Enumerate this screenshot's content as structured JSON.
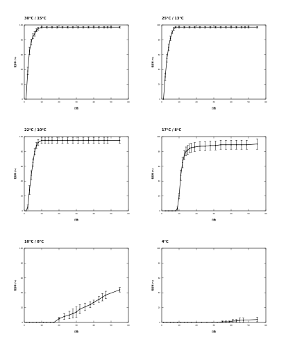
{
  "chart_data": [
    {
      "type": "line",
      "title": "30°C / 15°C",
      "xlabel": "日数",
      "ylabel": "発芽率 (%)",
      "xlim": [
        0,
        60
      ],
      "ylim": [
        0,
        100
      ],
      "xticks": [
        "0",
        "10",
        "20",
        "30",
        "40",
        "50",
        "60"
      ],
      "yticks": [
        "0",
        "20",
        "40",
        "60",
        "80",
        "100"
      ],
      "x": [
        1,
        2,
        3,
        4,
        5,
        6,
        7,
        8,
        10,
        13,
        16,
        19,
        22,
        25,
        28,
        31,
        34,
        37,
        40,
        43,
        46,
        48,
        50,
        55
      ],
      "y": [
        0,
        38,
        65,
        77,
        85,
        88,
        93,
        95,
        97,
        97,
        97,
        97,
        97,
        97,
        97,
        97,
        97,
        97,
        97,
        97,
        97,
        97,
        97,
        97
      ],
      "err": [
        0,
        5,
        5,
        4,
        3,
        3,
        2,
        2,
        1,
        1,
        1,
        1,
        1,
        1,
        1,
        1,
        1,
        1,
        1,
        1,
        1,
        1,
        1,
        1
      ]
    },
    {
      "type": "line",
      "title": "25°C / 13°C",
      "xlabel": "日数",
      "ylabel": "発芽率 (%)",
      "xlim": [
        0,
        60
      ],
      "ylim": [
        0,
        100
      ],
      "xticks": [
        "0",
        "10",
        "20",
        "30",
        "40",
        "50",
        "60"
      ],
      "yticks": [
        "0",
        "20",
        "40",
        "60",
        "80",
        "100"
      ],
      "x": [
        1,
        2,
        3,
        4,
        5,
        6,
        7,
        8,
        10,
        13,
        16,
        19,
        22,
        25,
        28,
        31,
        34,
        37,
        40,
        43,
        46,
        48,
        50,
        55
      ],
      "y": [
        0,
        30,
        55,
        70,
        82,
        90,
        95,
        97,
        97,
        97,
        97,
        97,
        97,
        97,
        97,
        97,
        97,
        97,
        97,
        97,
        97,
        97,
        97,
        97
      ],
      "err": [
        0,
        5,
        5,
        4,
        3,
        2,
        2,
        1,
        1,
        1,
        1,
        1,
        1,
        1,
        1,
        1,
        1,
        1,
        1,
        1,
        1,
        1,
        1,
        1
      ]
    },
    {
      "type": "line",
      "title": "22°C / 10°C",
      "xlabel": "日数",
      "ylabel": "発芽率 (%)",
      "xlim": [
        0,
        60
      ],
      "ylim": [
        0,
        100
      ],
      "xticks": [
        "0",
        "10",
        "20",
        "30",
        "40",
        "50",
        "60"
      ],
      "yticks": [
        "0",
        "20",
        "40",
        "60",
        "80",
        "100"
      ],
      "x": [
        1,
        2,
        3,
        4,
        5,
        6,
        7,
        8,
        10,
        12,
        14,
        16,
        19,
        22,
        25,
        28,
        31,
        34,
        37,
        40,
        43,
        46,
        48,
        55
      ],
      "y": [
        0,
        5,
        28,
        48,
        65,
        80,
        88,
        92,
        95,
        95,
        95,
        95,
        95,
        95,
        95,
        95,
        95,
        95,
        95,
        95,
        95,
        95,
        95,
        95
      ],
      "err": [
        0,
        3,
        6,
        6,
        5,
        4,
        4,
        4,
        4,
        4,
        4,
        4,
        4,
        4,
        4,
        4,
        4,
        4,
        4,
        4,
        4,
        4,
        4,
        4
      ]
    },
    {
      "type": "line",
      "title": "17°C / 8°C",
      "xlabel": "日数",
      "ylabel": "発芽率 (%)",
      "xlim": [
        0,
        60
      ],
      "ylim": [
        0,
        100
      ],
      "xticks": [
        "0",
        "10",
        "20",
        "30",
        "40",
        "50",
        "60"
      ],
      "yticks": [
        "0",
        "20",
        "40",
        "60",
        "80",
        "100"
      ],
      "x": [
        2,
        4,
        6,
        8,
        9,
        10,
        11,
        12,
        13,
        14,
        15,
        16,
        17,
        19,
        22,
        25,
        28,
        31,
        34,
        37,
        40,
        43,
        46,
        49,
        55
      ],
      "y": [
        0,
        0,
        0,
        0,
        3,
        20,
        48,
        65,
        75,
        80,
        82,
        84,
        85,
        86,
        87,
        87,
        88,
        88,
        89,
        89,
        89,
        89,
        89,
        89,
        90
      ],
      "err": [
        0,
        0,
        0,
        0,
        2,
        4,
        7,
        7,
        6,
        6,
        6,
        6,
        6,
        6,
        6,
        6,
        6,
        6,
        6,
        6,
        6,
        6,
        6,
        6,
        7
      ]
    },
    {
      "type": "line",
      "title": "10°C / 8°C",
      "xlabel": "日数",
      "ylabel": "発芽率 (%)",
      "xlim": [
        0,
        60
      ],
      "ylim": [
        0,
        100
      ],
      "xticks": [
        "0",
        "10",
        "20",
        "30",
        "40",
        "50",
        "60"
      ],
      "yticks": [
        "0",
        "20",
        "40",
        "60",
        "80",
        "100"
      ],
      "x": [
        1,
        3,
        5,
        7,
        9,
        11,
        13,
        15,
        17,
        20,
        23,
        26,
        28,
        30,
        32,
        35,
        38,
        40,
        43,
        45,
        47,
        55
      ],
      "y": [
        0,
        0,
        0,
        0,
        0,
        0,
        0,
        0,
        0,
        5,
        8,
        10,
        12,
        14,
        18,
        21,
        24,
        27,
        31,
        34,
        37,
        44
      ],
      "err": [
        0,
        0,
        0,
        0,
        0,
        0,
        0,
        0,
        0,
        2,
        4,
        5,
        6,
        7,
        6,
        5,
        4,
        3,
        4,
        5,
        5,
        3
      ]
    },
    {
      "type": "line",
      "title": "4°C",
      "xlabel": "日数",
      "ylabel": "発芽率 (%)",
      "xlim": [
        0,
        60
      ],
      "ylim": [
        0,
        100
      ],
      "xticks": [
        "0",
        "10",
        "20",
        "30",
        "40",
        "50",
        "60"
      ],
      "yticks": [
        "0",
        "20",
        "40",
        "60",
        "80",
        "100"
      ],
      "x": [
        1,
        3,
        5,
        7,
        9,
        11,
        13,
        15,
        17,
        20,
        23,
        26,
        29,
        32,
        35,
        37,
        39,
        41,
        43,
        45,
        47,
        55
      ],
      "y": [
        0,
        0,
        0,
        0,
        0,
        0,
        0,
        0,
        0,
        0,
        0,
        0,
        0,
        0,
        1,
        1,
        1,
        2,
        2,
        3,
        3,
        4
      ],
      "err": [
        0,
        0,
        0,
        0,
        0,
        0,
        0,
        0,
        0,
        0,
        0,
        0,
        0,
        0,
        1,
        1,
        1,
        2,
        2,
        3,
        3,
        3
      ]
    }
  ]
}
